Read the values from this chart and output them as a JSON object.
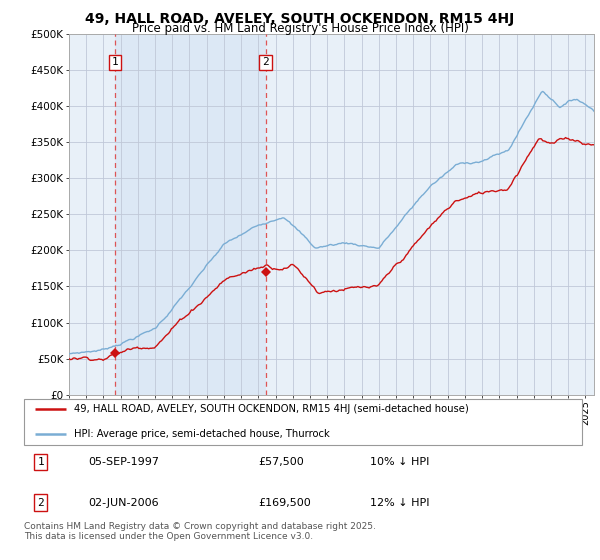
{
  "title": "49, HALL ROAD, AVELEY, SOUTH OCKENDON, RM15 4HJ",
  "subtitle": "Price paid vs. HM Land Registry's House Price Index (HPI)",
  "title_fontsize": 10,
  "subtitle_fontsize": 8.5,
  "background_color": "#ffffff",
  "plot_bg_color": "#e8f0f8",
  "grid_color": "#c0c8d8",
  "ylim": [
    0,
    500000
  ],
  "yticks": [
    0,
    50000,
    100000,
    150000,
    200000,
    250000,
    300000,
    350000,
    400000,
    450000,
    500000
  ],
  "ytick_labels": [
    "£0",
    "£50K",
    "£100K",
    "£150K",
    "£200K",
    "£250K",
    "£300K",
    "£350K",
    "£400K",
    "£450K",
    "£500K"
  ],
  "hpi_color": "#7aadd4",
  "price_color": "#cc1111",
  "marker_color": "#cc1111",
  "vline_color": "#dd4444",
  "shade_color": "#dce8f5",
  "annotation_bg": "#ffffff",
  "annotation_border": "#cc1111",
  "sale1_date_num": 1997.67,
  "sale1_price": 57500,
  "sale1_label": "1",
  "sale2_date_num": 2006.42,
  "sale2_price": 169500,
  "sale2_label": "2",
  "xlim_left": 1995.0,
  "xlim_right": 2025.5,
  "legend_line1": "49, HALL ROAD, AVELEY, SOUTH OCKENDON, RM15 4HJ (semi-detached house)",
  "legend_line2": "HPI: Average price, semi-detached house, Thurrock",
  "table_row1": [
    "1",
    "05-SEP-1997",
    "£57,500",
    "10% ↓ HPI"
  ],
  "table_row2": [
    "2",
    "02-JUN-2006",
    "£169,500",
    "12% ↓ HPI"
  ],
  "footnote": "Contains HM Land Registry data © Crown copyright and database right 2025.\nThis data is licensed under the Open Government Licence v3.0.",
  "footnote_fontsize": 6.5
}
